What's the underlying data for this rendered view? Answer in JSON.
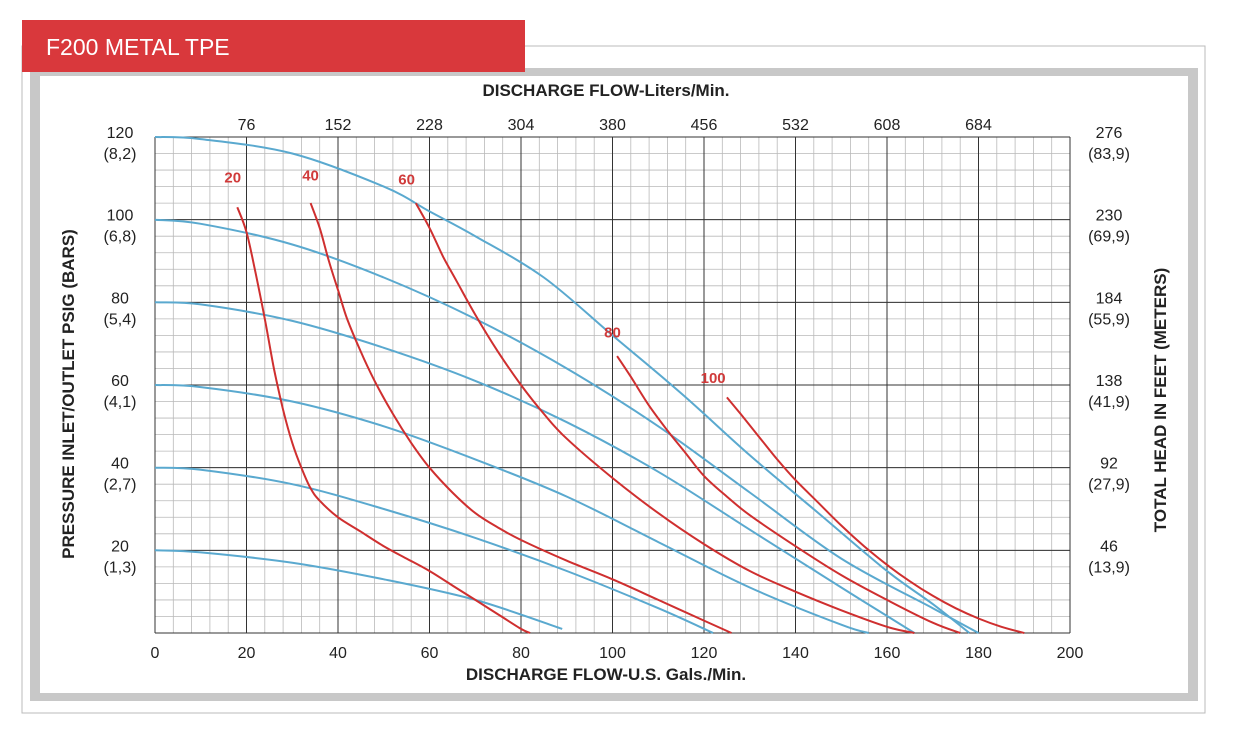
{
  "colors": {
    "title_bar": "#d9383c",
    "frame": "#c8c8c8",
    "pressure_curve": "#5aa9cf",
    "air_curve": "#cf2f2f"
  },
  "title": "F200 METAL TPE",
  "chart_data": {
    "type": "line",
    "title": "F200 METAL TPE",
    "xlabel": "DISCHARGE FLOW-U.S. Gals./Min.",
    "x2label": "DISCHARGE FLOW-Liters/Min.",
    "ylabel": "PRESSURE INLET/OUTLET PSIG (BARS)",
    "y2label": "TOTAL HEAD IN FEET (METERS)",
    "xlim": [
      0,
      200
    ],
    "ylim": [
      0,
      120
    ],
    "grid": true,
    "x_ticks": [
      "0",
      "20",
      "40",
      "60",
      "80",
      "100",
      "120",
      "140",
      "160",
      "180",
      "200"
    ],
    "x2_ticks": [
      {
        "label": "76",
        "x": 20
      },
      {
        "label": "152",
        "x": 40
      },
      {
        "label": "228",
        "x": 60
      },
      {
        "label": "304",
        "x": 80
      },
      {
        "label": "380",
        "x": 100
      },
      {
        "label": "456",
        "x": 120
      },
      {
        "label": "532",
        "x": 140
      },
      {
        "label": "608",
        "x": 160
      },
      {
        "label": "684",
        "x": 180
      }
    ],
    "y_ticks": [
      {
        "psi": "120",
        "bar": "(8,2)",
        "y": 120
      },
      {
        "psi": "100",
        "bar": "(6,8)",
        "y": 100
      },
      {
        "psi": "80",
        "bar": "(5,4)",
        "y": 80
      },
      {
        "psi": "60",
        "bar": "(4,1)",
        "y": 60
      },
      {
        "psi": "40",
        "bar": "(2,7)",
        "y": 40
      },
      {
        "psi": "20",
        "bar": "(1,3)",
        "y": 20
      }
    ],
    "y2_ticks": [
      {
        "feet": "276",
        "meters": "(83,9)",
        "y": 120
      },
      {
        "feet": "230",
        "meters": "(69,9)",
        "y": 100
      },
      {
        "feet": "184",
        "meters": "(55,9)",
        "y": 80
      },
      {
        "feet": "138",
        "meters": "(41,9)",
        "y": 60
      },
      {
        "feet": "92",
        "meters": "(27,9)",
        "y": 40
      },
      {
        "feet": "46",
        "meters": "(13,9)",
        "y": 20
      }
    ],
    "pressure_series": [
      {
        "x": [
          0,
          10,
          30,
          50,
          60,
          70,
          85,
          100,
          115,
          130,
          145,
          160,
          170,
          178
        ],
        "y": [
          120,
          119.5,
          116,
          108,
          102,
          96,
          86,
          72,
          58,
          43,
          29,
          15,
          7,
          0
        ]
      },
      {
        "x": [
          0,
          10,
          30,
          50,
          70,
          90,
          110,
          130,
          150,
          170,
          180
        ],
        "y": [
          100,
          99,
          94,
          86,
          76,
          64,
          50,
          34,
          18,
          6,
          0
        ]
      },
      {
        "x": [
          0,
          10,
          30,
          50,
          70,
          90,
          110,
          130,
          150,
          166
        ],
        "y": [
          80,
          79.5,
          75.5,
          69,
          61,
          51,
          39,
          25,
          11,
          0
        ]
      },
      {
        "x": [
          0,
          10,
          30,
          50,
          70,
          90,
          110,
          130,
          150,
          156
        ],
        "y": [
          60,
          59.5,
          56,
          50,
          42,
          33,
          22,
          11,
          2,
          0
        ]
      },
      {
        "x": [
          0,
          10,
          30,
          50,
          70,
          90,
          110,
          122
        ],
        "y": [
          40,
          39.5,
          36,
          30,
          23,
          15,
          6,
          0
        ]
      },
      {
        "x": [
          0,
          10,
          30,
          50,
          70,
          89
        ],
        "y": [
          20,
          19.5,
          17,
          13,
          8,
          1
        ]
      }
    ],
    "air_series": [
      {
        "name": "20",
        "label_at": [
          17,
          109
        ],
        "x": [
          18,
          20,
          22,
          24,
          26,
          28,
          30,
          32,
          34,
          36,
          40,
          45,
          50,
          55,
          60,
          65,
          70,
          75,
          80,
          82
        ],
        "y": [
          103,
          97,
          87,
          76,
          64,
          54,
          46,
          40,
          35,
          32,
          28,
          24.5,
          21,
          18,
          15,
          11.5,
          8,
          4.5,
          1,
          0
        ]
      },
      {
        "name": "40",
        "label_at": [
          34,
          109.5
        ],
        "x": [
          34,
          36,
          38,
          40,
          42,
          45,
          48,
          52,
          56,
          60,
          65,
          70,
          75,
          80,
          90,
          100,
          110,
          120,
          126
        ],
        "y": [
          104,
          98,
          90,
          83,
          76,
          68,
          61,
          53,
          46,
          40,
          34,
          29,
          25.5,
          22.5,
          17.5,
          13,
          8,
          3,
          0
        ]
      },
      {
        "name": "60",
        "label_at": [
          55,
          108.5
        ],
        "x": [
          57,
          60,
          63,
          66,
          70,
          75,
          80,
          85,
          90,
          100,
          110,
          120,
          130,
          140,
          150,
          160,
          166
        ],
        "y": [
          104,
          98,
          91,
          85,
          77,
          68,
          60,
          53,
          47,
          37.5,
          29,
          21.5,
          15,
          10,
          5.5,
          1.5,
          0
        ]
      },
      {
        "name": "80",
        "label_at": [
          100,
          71.5
        ],
        "x": [
          101,
          104,
          108,
          112,
          116,
          120,
          125,
          130,
          140,
          150,
          160,
          170,
          176
        ],
        "y": [
          67,
          62,
          55,
          49,
          43.5,
          38,
          33,
          28.5,
          21,
          14,
          8,
          2.5,
          0
        ]
      },
      {
        "name": "100",
        "label_at": [
          122,
          60.5
        ],
        "x": [
          125,
          128,
          132,
          136,
          140,
          145,
          150,
          155,
          160,
          165,
          170,
          175,
          180,
          185,
          190
        ],
        "y": [
          57,
          53,
          47.5,
          42,
          37,
          31.5,
          26,
          21,
          16.5,
          12.5,
          9,
          6,
          3.5,
          1.5,
          0
        ]
      }
    ]
  }
}
